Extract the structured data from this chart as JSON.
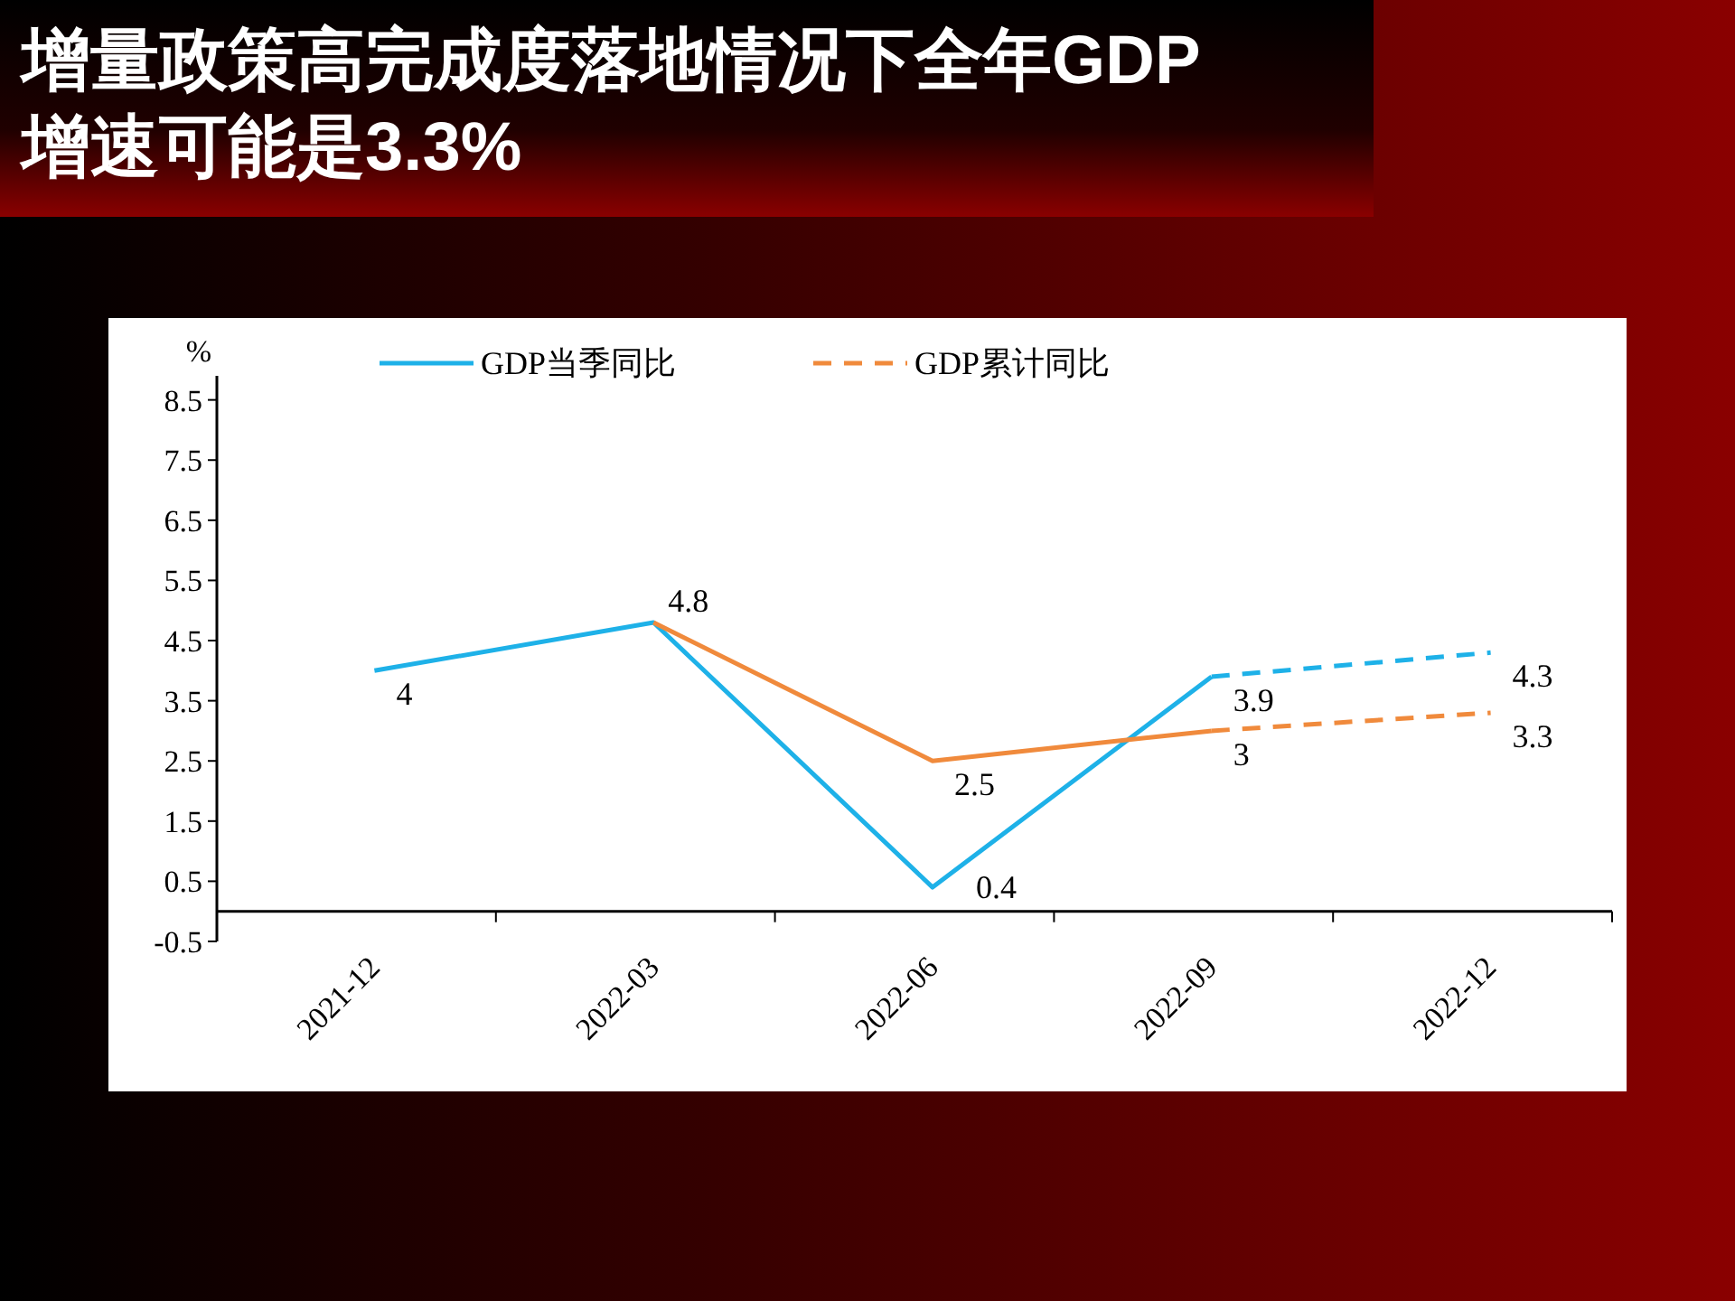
{
  "chart_data": {
    "type": "line",
    "title": "增量政策高完成度落地情况下全年GDP增速可能是3.3%",
    "ylabel": "%",
    "categories": [
      "2021-12",
      "2022-03",
      "2022-06",
      "2022-09",
      "2022-12"
    ],
    "series": [
      {
        "name": "GDP当季同比",
        "color": "#1eb1e8",
        "line_style": "solid",
        "values": [
          4,
          4.8,
          0.4,
          3.9,
          null
        ],
        "value_labels": [
          "4",
          "4.8",
          "0.4",
          "3.9",
          null
        ]
      },
      {
        "color": "#1eb1e8",
        "line_style": "dashed",
        "values": [
          null,
          null,
          null,
          3.9,
          4.3
        ],
        "value_labels": [
          null,
          null,
          null,
          null,
          "4.3"
        ]
      },
      {
        "color": "#f08a3c",
        "line_style": "solid",
        "values": [
          null,
          4.8,
          2.5,
          3,
          null
        ],
        "value_labels": [
          null,
          null,
          "2.5",
          "3",
          null
        ]
      },
      {
        "name": "GDP累计同比",
        "color": "#f08a3c",
        "line_style": "dashed",
        "values": [
          null,
          null,
          null,
          3,
          3.3
        ],
        "value_labels": [
          null,
          null,
          null,
          null,
          "3.3"
        ]
      }
    ],
    "ylim": [
      -0.5,
      8.9
    ],
    "yticks": [
      -0.5,
      0.5,
      1.5,
      2.5,
      3.5,
      4.5,
      5.5,
      6.5,
      7.5,
      8.5
    ],
    "grid": false,
    "legend": "top"
  }
}
